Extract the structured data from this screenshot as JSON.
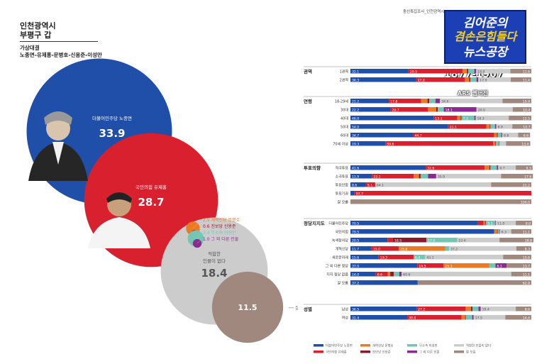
{
  "header": {
    "district_line1": "인천광역시",
    "district_line2": "부평구 갑",
    "matchup_label": "가상대결",
    "candidates_line": "노종면-유제홍-문병호-신용준-이성만",
    "source_text": "충선특집조사_인천광역시"
  },
  "logo": {
    "line1": "김어준의",
    "line2": "겸손은힘들다",
    "line3": "뉴스공장",
    "period": "1877-1907",
    "method": "ARS 웹버전"
  },
  "colors": {
    "dem": "#1f4fa8",
    "ppp": "#d8202f",
    "reform": "#ea7a23",
    "progressive": "#8b1a2c",
    "jogook": "#73c6b4",
    "other": "#8a2c8f",
    "undecided": "#cccccc",
    "dontknow": "#a1887f",
    "accent": "#1d3fb5"
  },
  "chart_data": [
    {
      "type": "bubble",
      "title": "",
      "items": [
        {
          "label": "더불어민주당 노종면",
          "value": 33.9,
          "color": "#1f4fa8"
        },
        {
          "label": "국민의힘 유제홍",
          "value": 28.7,
          "color": "#d8202f"
        },
        {
          "label": "개혁신당 문병호",
          "value": 2.5,
          "color": "#ea7a23"
        },
        {
          "label": "진보당 신용준",
          "value": 0.6,
          "color": "#8b1a2c"
        },
        {
          "label": "무소속 이성만",
          "value": 3.4,
          "color": "#73c6b4"
        },
        {
          "label": "그 외 다른 인물",
          "value": 1.0,
          "color": "#8a2c8f"
        },
        {
          "label": "적합한 인물이 없다",
          "value": 18.4,
          "color": "#cccccc"
        },
        {
          "label": "잘 모름",
          "value": 11.5,
          "color": "#a1887f"
        }
      ]
    },
    {
      "type": "bar",
      "stacked": true,
      "orientation": "horizontal",
      "xlim": [
        0,
        100
      ],
      "series": [
        {
          "name": "더불어민주당 노종면",
          "color": "#1f4fa8"
        },
        {
          "name": "국민의힘 유제홍",
          "color": "#d8202f"
        },
        {
          "name": "개혁신당 문병호",
          "color": "#ea7a23"
        },
        {
          "name": "진보당 신용준",
          "color": "#8b1a2c"
        },
        {
          "name": "무소속 이성만",
          "color": "#73c6b4"
        },
        {
          "name": "그 외 다른 인물",
          "color": "#8a2c8f"
        },
        {
          "name": "적합한 인물이 없다",
          "color": "#cccccc"
        },
        {
          "name": "잘 모름",
          "color": "#a1887f"
        }
      ],
      "groups": [
        {
          "name": "권역",
          "rows": [
            {
              "label": "1권역",
              "values": [
                32.1,
                29.9,
                2.5,
                0.6,
                3.4,
                1.0,
                18.9,
                11.6
              ]
            },
            {
              "label": "2권역",
              "values": [
                36.3,
                27.0,
                2.4,
                0.6,
                3.4,
                1.0,
                17.9,
                11.4
              ]
            }
          ]
        },
        {
          "name": "연령",
          "rows": [
            {
              "label": "18-29세",
              "values": [
                21.2,
                17.8,
                3.6,
                1.0,
                3.4,
                2.5,
                34.6,
                15.9
              ]
            },
            {
              "label": "30대",
              "values": [
                22.2,
                20.7,
                4.5,
                0.9,
                3.3,
                18.1,
                20.0,
                10.4
              ]
            },
            {
              "label": "40대",
              "values": [
                46.0,
                13.1,
                1.8,
                0.5,
                7.1,
                0.7,
                18.3,
                12.5
              ]
            },
            {
              "label": "50대",
              "values": [
                54.0,
                21.1,
                1.9,
                0.4,
                2.6,
                0.6,
                8.9,
                10.7
              ]
            },
            {
              "label": "60대",
              "values": [
                34.7,
                44.7,
                1.6,
                0.4,
                2.0,
                0.5,
                8.8,
                6.6
              ]
            },
            {
              "label": "70세 이상",
              "values": [
                19.3,
                59.6,
                1.2,
                0.3,
                1.5,
                0.4,
                3.7,
                13.4
              ]
            }
          ]
        },
        {
          "name": "투표의향",
          "rows": [
            {
              "label": "적극투표",
              "values": [
                41.6,
                32.6,
                2.6,
                0.6,
                3.5,
                0.8,
                9.7,
                9.3
              ]
            },
            {
              "label": "소극투표",
              "values": [
                11.9,
                23.1,
                2.9,
                0.9,
                4.1,
                4.5,
                35.9,
                17.6
              ]
            },
            {
              "label": "투표안함",
              "values": [
                8.6,
                5.1,
                0.0,
                0.0,
                0.0,
                0.0,
                64.1,
                22.2
              ]
            },
            {
              "label": "투표기권",
              "values": [
                2.3,
                97.7,
                0.0,
                0.0,
                0.0,
                0.0,
                0.0,
                0.0
              ]
            },
            {
              "label": "잘 모름",
              "values": [
                0.0,
                0.0,
                0.0,
                0.0,
                0.0,
                0.0,
                0.0,
                100.0
              ]
            }
          ]
        },
        {
          "name": "정당지지도",
          "rows": [
            {
              "label": "더불어민주당",
              "values": [
                70.5,
                3.1,
                1.0,
                0.4,
                5.1,
                0.3,
                11.0,
                9.0
              ]
            },
            {
              "label": "국민의힘",
              "values": [
                79.5,
                0.0,
                1.6,
                0.3,
                0.8,
                0.4,
                6.3,
                11.1
              ]
            },
            {
              "label": "녹색정의당",
              "values": [
                20.5,
                3.0,
                0.0,
                18.5,
                17.0,
                0.0,
                23.4,
                18.8
              ]
            },
            {
              "label": "개혁신당",
              "values": [
                11.7,
                15.0,
                25.8,
                0.0,
                2.0,
                0.0,
                37.2,
                8.3
              ]
            },
            {
              "label": "새로운미래",
              "values": [
                15.6,
                19.3,
                0.0,
                0.0,
                6.4,
                0.0,
                43.1,
                15.6
              ]
            },
            {
              "label": "그 외 다른 정당",
              "values": [
                37.0,
                14.5,
                25.3,
                0.0,
                3.4,
                6.1,
                0.0,
                13.7
              ]
            },
            {
              "label": "지지 정당 없음",
              "values": [
                14.0,
                6.6,
                1.4,
                2.0,
                3.0,
                1.3,
                60.6,
                11.1
              ]
            },
            {
              "label": "잘 모름",
              "values": [
                37.2,
                0.0,
                0.0,
                0.0,
                0.0,
                0.0,
                0.0,
                62.8
              ]
            }
          ]
        },
        {
          "name": "성별",
          "rows": [
            {
              "label": "남성",
              "values": [
                36.5,
                27.2,
                3.0,
                0.8,
                3.3,
                1.2,
                19.4,
                8.6
              ]
            },
            {
              "label": "여성",
              "values": [
                31.4,
                30.0,
                2.0,
                0.4,
                3.5,
                0.8,
                17.5,
                14.4
              ]
            }
          ]
        }
      ]
    }
  ]
}
